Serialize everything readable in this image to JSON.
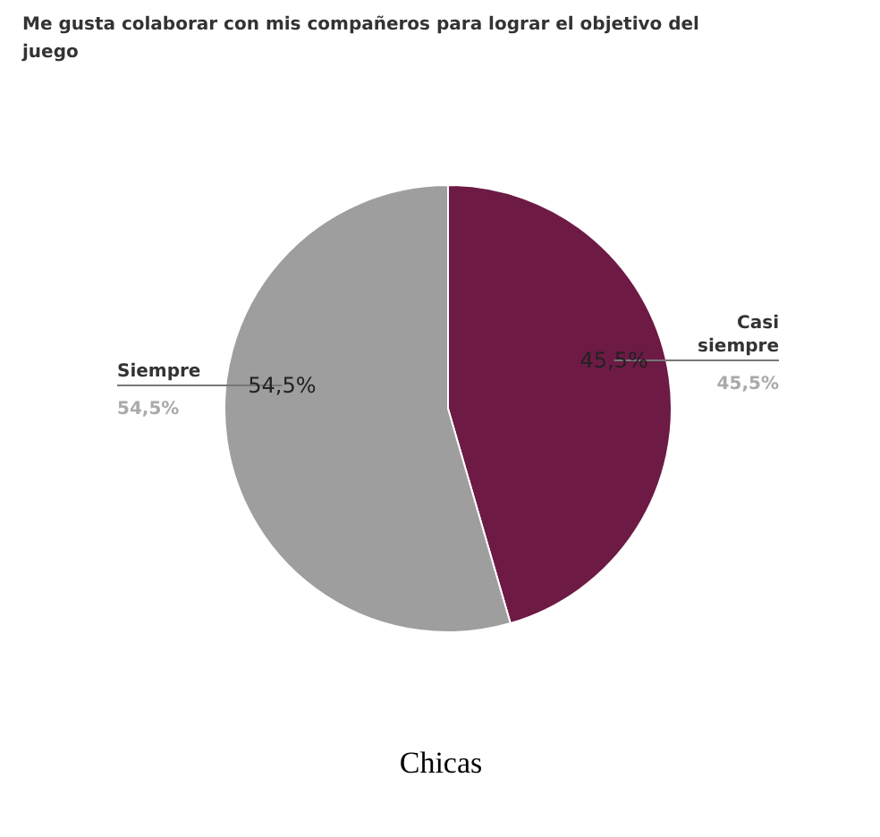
{
  "chart_data": {
    "type": "pie",
    "title": "Me gusta colaborar con mis compañeros para lograr el objetivo del juego",
    "categories": [
      "Casi siempre",
      "Siempre"
    ],
    "values": [
      45.5,
      54.5
    ],
    "colors": [
      "#6d1a45",
      "#9e9e9e"
    ],
    "value_labels": [
      "45,5%",
      "54,5%"
    ],
    "annotations": [
      "Chicas"
    ]
  }
}
